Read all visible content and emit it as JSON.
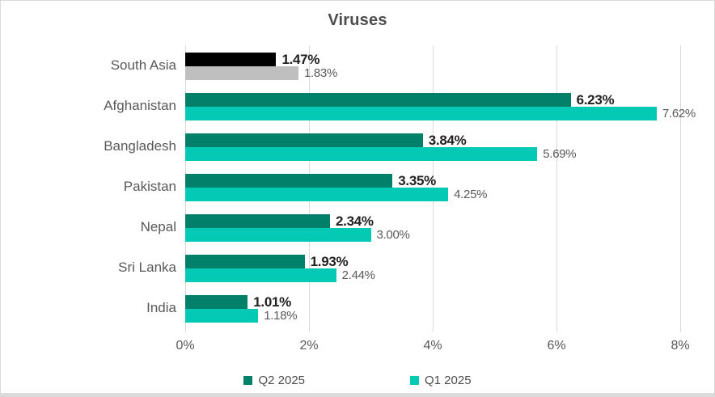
{
  "chart_data": {
    "type": "bar",
    "orientation": "horizontal",
    "title": "Viruses",
    "categories": [
      "South Asia",
      "Afghanistan",
      "Bangladesh",
      "Pakistan",
      "Nepal",
      "Sri Lanka",
      "India"
    ],
    "series": [
      {
        "name": "Q2 2025",
        "color": "#028069",
        "values": [
          1.47,
          6.23,
          3.84,
          3.35,
          2.34,
          1.93,
          1.01
        ],
        "labels": [
          "1.47%",
          "6.23%",
          "3.84%",
          "3.35%",
          "2.34%",
          "1.93%",
          "1.01%"
        ]
      },
      {
        "name": "Q1 2025",
        "color": "#03C9B5",
        "values": [
          1.83,
          7.62,
          5.69,
          4.25,
          3.0,
          2.44,
          1.18
        ],
        "labels": [
          "1.83%",
          "7.62%",
          "5.69%",
          "4.25%",
          "3.00%",
          "2.44%",
          "1.18%"
        ]
      }
    ],
    "highlight_category": "South Asia",
    "highlight_colors": [
      "#000000",
      "#BFBFBF"
    ],
    "xlim": [
      0,
      8
    ],
    "x_ticks": [
      {
        "value": 0,
        "label": "0%"
      },
      {
        "value": 2,
        "label": "2%"
      },
      {
        "value": 4,
        "label": "4%"
      },
      {
        "value": 6,
        "label": "6%"
      },
      {
        "value": 8,
        "label": "8%"
      }
    ],
    "grid": true,
    "legend_position": "bottom"
  },
  "colors": {
    "grid": "#D9D9D9",
    "axis_text": "#595959",
    "category_text": "#595959",
    "q2_value_text": "#212121",
    "q1_value_text": "#595959",
    "title_text": "#4D4D4D",
    "frame_border": "#D9D9D9",
    "bottom_strip": "#DCDCDC"
  }
}
